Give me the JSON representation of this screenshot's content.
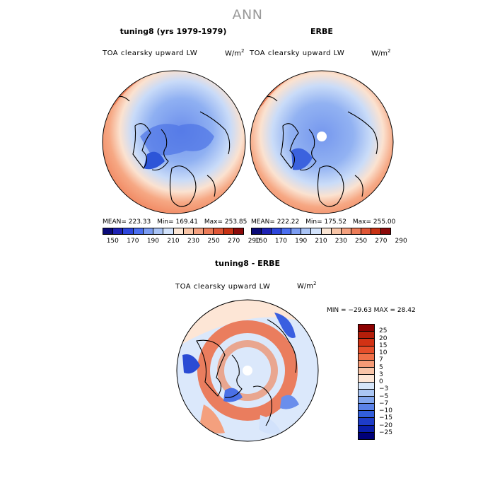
{
  "page": {
    "main_title": "ANN"
  },
  "panels": [
    {
      "title": "tuning8 (yrs 1979-1979)",
      "variable": "TOA clearsky upward LW",
      "units": "W/m",
      "units_exp": "2",
      "stats": {
        "mean": "MEAN= 223.33",
        "min": "Min= 169.41",
        "max": "Max= 253.85"
      }
    },
    {
      "title": "ERBE",
      "variable": "TOA clearsky upward LW",
      "units": "W/m",
      "units_exp": "2",
      "stats": {
        "mean": "MEAN= 222.22",
        "min": "Min= 175.52",
        "max": "Max= 255.00"
      }
    },
    {
      "title": "tuning8 - ERBE",
      "variable": "TOA clearsky upward LW",
      "units": "W/m",
      "units_exp": "2",
      "stats": {
        "minmax": "MIN = −29.63  MAX =  28.42"
      }
    }
  ],
  "colorbar_abs": {
    "colors": [
      "#0a0a78",
      "#1e22b4",
      "#2d46dc",
      "#4a6ef0",
      "#7b9cf2",
      "#a9c3f5",
      "#d2e2fb",
      "#fbe5d4",
      "#f8c4a6",
      "#f4a07e",
      "#ec7c58",
      "#e05636",
      "#c83214",
      "#8c0a0a"
    ],
    "tick_labels": [
      "150",
      "170",
      "190",
      "210",
      "230",
      "250",
      "270",
      "290"
    ]
  },
  "colorbar_diff": {
    "colors": [
      "#8c0000",
      "#b41e0a",
      "#d23214",
      "#e64e2a",
      "#f07048",
      "#f59a76",
      "#f8c4a8",
      "#fde6d6",
      "#d6e6fa",
      "#aac6f4",
      "#82a6ee",
      "#5a82e8",
      "#325edc",
      "#1e3cc8",
      "#0a1eaa",
      "#000078"
    ],
    "tick_labels": [
      "25",
      "20",
      "15",
      "10",
      "7",
      "5",
      "3",
      "0",
      "−3",
      "−5",
      "−7",
      "−10",
      "−15",
      "−20",
      "−25"
    ]
  },
  "colors": {
    "land_outline": "#000000",
    "warm": "#f28a62",
    "cool": "#7a9df0"
  }
}
